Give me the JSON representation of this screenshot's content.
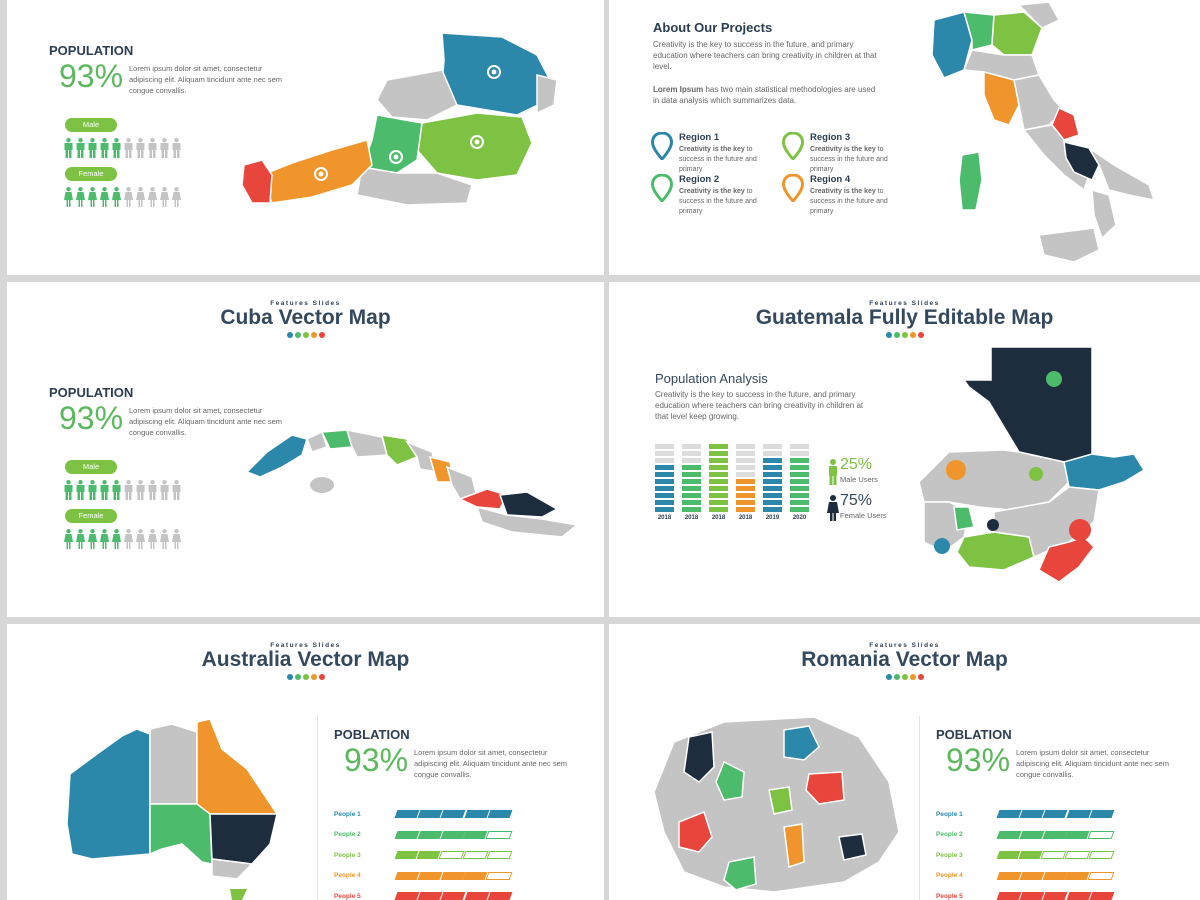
{
  "colors": {
    "blue": "#2b88ab",
    "green": "#4cbb6c",
    "lime": "#7dc242",
    "orange": "#f0952b",
    "red": "#e8453c",
    "navy": "#1e2d3e",
    "gray": "#c4c4c4"
  },
  "slide1": {
    "title": "POPULATION",
    "percent": "93%",
    "text": "Lorem ipsum dolor sit amet, consectetur adipiscing elit. Aliquam tincidunt ante nec sem congue convallis.",
    "male_label": "Male",
    "female_label": "Female",
    "male_filled_of_10": 5,
    "female_filled_of_10": 5
  },
  "slide2": {
    "title": "About Our Projects",
    "para1": "Creativity is the key to success in the future, and primary education where teachers can bring creativity in children at that level.",
    "para2_bold": "Lorem Ipsum",
    "para2_rest": " has two main statistical methodologies are used in data analysis which summarizes data.",
    "regions": [
      {
        "name": "Region 1",
        "bold": "Creativity is the key",
        "rest": " to success in the future and primary",
        "color": "#2b88ab"
      },
      {
        "name": "Region 3",
        "bold": "Creativity is the key",
        "rest": " to success in the future and primary",
        "color": "#7dc242"
      },
      {
        "name": "Region 2",
        "bold": "Creativity is the key",
        "rest": " to success in the future and primary",
        "color": "#4cbb6c"
      },
      {
        "name": "Region 4",
        "bold": "Creativity is the key",
        "rest": " to success in the future and primary",
        "color": "#f0952b"
      }
    ]
  },
  "slide3": {
    "kicker": "Features Slides",
    "title": "Cuba Vector Map",
    "pop_title": "POPULATION",
    "percent": "93%",
    "text": "Lorem ipsum dolor sit amet, consectetur adipiscing elit. Aliquam tincidunt ante nec sem congue convallis.",
    "male_label": "Male",
    "female_label": "Female"
  },
  "slide4": {
    "kicker": "Features Slides",
    "title": "Guatemala Fully Editable Map",
    "heading": "Population Analysis",
    "text": "Creativity is the key to success in the future, and primary education where teachers can bring creativity in children at that level keep growing.",
    "years": [
      "2018",
      "2018",
      "2018",
      "2018",
      "2019",
      "2020"
    ],
    "filled_of_10": [
      7,
      7,
      10,
      5,
      8,
      8
    ],
    "bar_colors": [
      "#2b88ab",
      "#4cbb6c",
      "#7dc242",
      "#f0952b",
      "#2b88ab",
      "#4cbb6c"
    ],
    "male_pct": "25%",
    "male_label": "Male Users",
    "female_pct": "75%",
    "female_label": "Female Users"
  },
  "slide5": {
    "kicker": "Features Slides",
    "title": "Australia Vector Map",
    "pop_title": "POBLATION",
    "percent": "93%",
    "text": "Lorem ipsum dolor sit amet, consectetur adipiscing elit. Aliquam tincidunt ante nec sem congue convallis.",
    "people": [
      {
        "label": "People 1",
        "color": "#2b88ab",
        "filled_of_5": 5
      },
      {
        "label": "People 2",
        "color": "#4cbb6c",
        "filled_of_5": 4
      },
      {
        "label": "People 3",
        "color": "#7dc242",
        "filled_of_5": 2
      },
      {
        "label": "People 4",
        "color": "#f0952b",
        "filled_of_5": 4
      },
      {
        "label": "People 5",
        "color": "#e8453c",
        "filled_of_5": 5
      }
    ]
  },
  "slide6": {
    "kicker": "Features Slides",
    "title": "Romania Vector Map",
    "pop_title": "POBLATION",
    "percent": "93%",
    "text": "Lorem ipsum dolor sit amet, consectetur adipiscing elit. Aliquam tincidunt ante nec sem congue convallis.",
    "people": [
      {
        "label": "People 1",
        "color": "#2b88ab",
        "filled_of_5": 5
      },
      {
        "label": "People 2",
        "color": "#4cbb6c",
        "filled_of_5": 4
      },
      {
        "label": "People 3",
        "color": "#7dc242",
        "filled_of_5": 2
      },
      {
        "label": "People 4",
        "color": "#f0952b",
        "filled_of_5": 4
      },
      {
        "label": "People 5",
        "color": "#e8453c",
        "filled_of_5": 5
      }
    ]
  }
}
